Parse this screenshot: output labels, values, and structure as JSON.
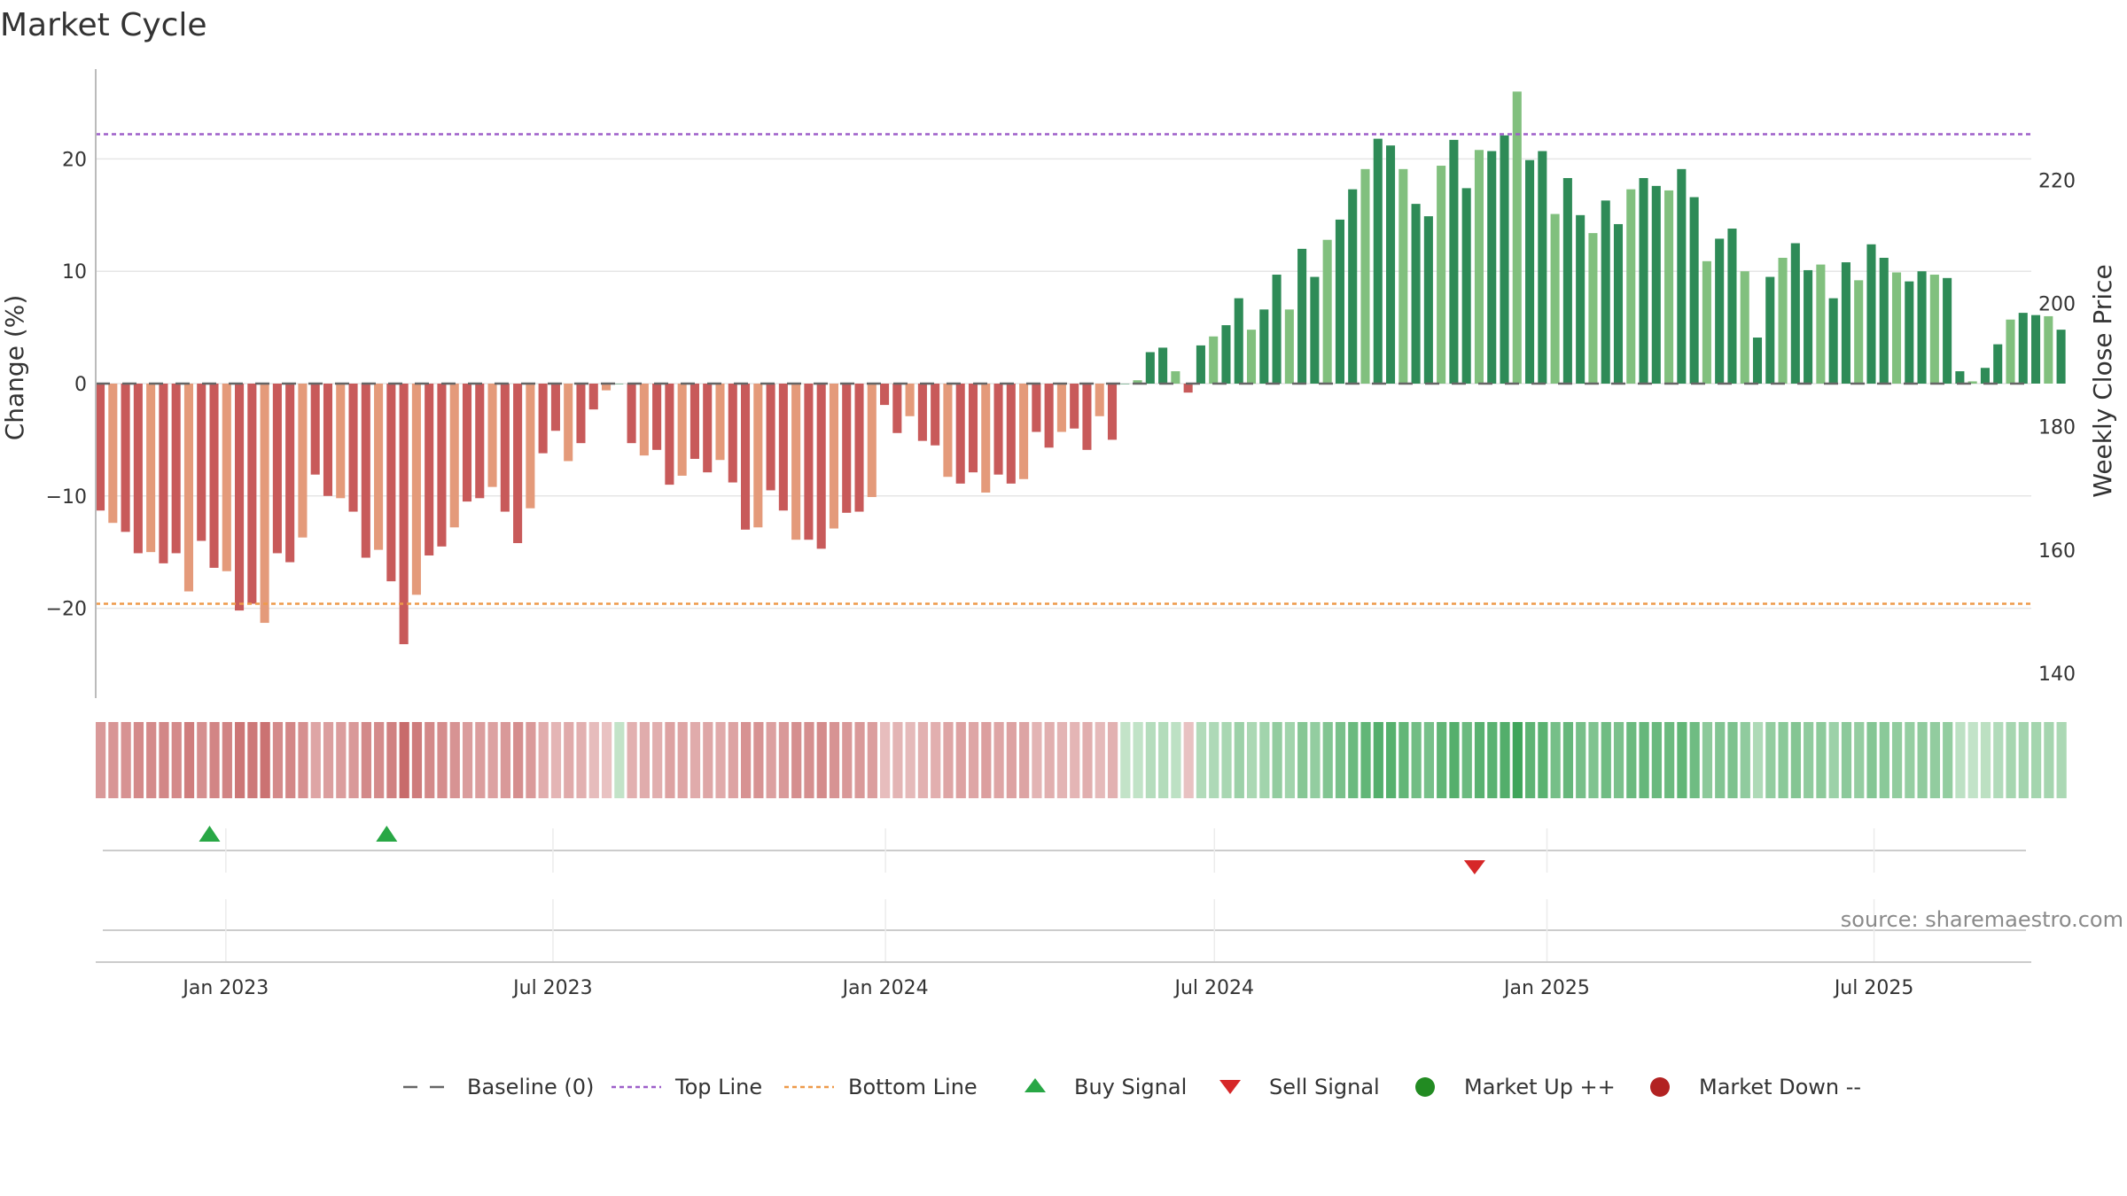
{
  "chart_data": {
    "type": "bar",
    "title": "Market Cycle",
    "ylabel": "Change (%)",
    "y2label": "Weekly Close Price",
    "ylim": [
      -28,
      28
    ],
    "y2lim": [
      136,
      238
    ],
    "yticks": [
      -20,
      -10,
      0,
      10,
      20
    ],
    "y2ticks": [
      140,
      160,
      180,
      200,
      220
    ],
    "xlim": [
      "2022-10-21",
      "2025-09-26"
    ],
    "xticks": [
      {
        "date": "2023-01-01",
        "label": "Jan 2023"
      },
      {
        "date": "2023-07-01",
        "label": "Jul 2023"
      },
      {
        "date": "2024-01-01",
        "label": "Jan 2024"
      },
      {
        "date": "2024-07-01",
        "label": "Jul 2024"
      },
      {
        "date": "2025-01-01",
        "label": "Jan 2025"
      },
      {
        "date": "2025-07-01",
        "label": "Jul 2025"
      }
    ],
    "start_date": "2022-10-21",
    "interval_days": 7,
    "top_line": 22.2,
    "bottom_line": -19.6,
    "baseline": 0,
    "values": [
      -11.3,
      -12.4,
      -13.2,
      -15.1,
      -15.0,
      -16.0,
      -15.1,
      -18.5,
      -14.0,
      -16.4,
      -16.7,
      -20.2,
      -19.6,
      -21.3,
      -15.1,
      -15.9,
      -13.7,
      -8.1,
      -10.0,
      -10.2,
      -11.4,
      -15.5,
      -14.8,
      -17.6,
      -23.2,
      -18.8,
      -15.3,
      -14.5,
      -12.8,
      -10.5,
      -10.2,
      -9.2,
      -11.4,
      -14.2,
      -11.1,
      -6.2,
      -4.2,
      -6.9,
      -5.3,
      -2.3,
      -0.6,
      0,
      -5.3,
      -6.4,
      -5.9,
      -9.0,
      -8.2,
      -6.7,
      -7.9,
      -6.8,
      -8.8,
      -13.0,
      -12.8,
      -9.5,
      -11.3,
      -13.9,
      -13.9,
      -14.7,
      -12.9,
      -11.5,
      -11.4,
      -10.1,
      -1.9,
      -4.4,
      -2.9,
      -5.1,
      -5.5,
      -8.3,
      -8.9,
      -7.9,
      -9.7,
      -8.1,
      -8.9,
      -8.5,
      -4.3,
      -5.7,
      -4.3,
      -4.0,
      -5.9,
      -2.9,
      -5.0,
      0,
      0.3,
      2.8,
      3.2,
      1.1,
      -0.8,
      3.4,
      4.2,
      5.2,
      7.6,
      4.8,
      6.6,
      9.7,
      6.6,
      12.0,
      9.5,
      12.8,
      14.6,
      17.3,
      19.1,
      21.8,
      21.2,
      19.1,
      16.0,
      14.9,
      19.4,
      21.7,
      17.4,
      20.8,
      20.7,
      22.1,
      26.0,
      19.9,
      20.7,
      15.1,
      18.3,
      15.0,
      13.4,
      16.3,
      14.2,
      17.3,
      18.3,
      17.6,
      17.2,
      19.1,
      16.6,
      10.9,
      12.9,
      13.8,
      10.0,
      4.1,
      9.5,
      11.2,
      12.5,
      10.1,
      10.6,
      7.6,
      10.8,
      9.2,
      12.4,
      11.2,
      9.9,
      9.1,
      10.0,
      9.7,
      9.4,
      1.1,
      0.2,
      1.4,
      3.5,
      5.7,
      6.3,
      6.1,
      6.0,
      4.8
    ],
    "buy_signals": [
      "2022-12-23",
      "2023-03-31"
    ],
    "sell_signals": [
      "2024-11-22"
    ],
    "colors": {
      "neg_dark": "#c85a5a",
      "neg_light": "#e49a7a",
      "pos_dark": "#2e8b57",
      "pos_light": "#81c07e",
      "top_line": "#9d5fc9",
      "bottom_line": "#ee9a4a",
      "baseline": "#666666",
      "buy": "#28a745",
      "sell": "#d62728",
      "market_up": "#228b22",
      "market_down": "#b22222"
    }
  },
  "source": "source: sharemaestro.com",
  "legend": [
    {
      "key": "baseline",
      "label": "Baseline (0)",
      "icon": "dashed-line-icon"
    },
    {
      "key": "top",
      "label": "Top Line",
      "icon": "dotted-line-icon"
    },
    {
      "key": "bottom",
      "label": "Bottom Line",
      "icon": "dotted-line-icon"
    },
    {
      "key": "buy",
      "label": "Buy Signal",
      "icon": "up-triangle-icon"
    },
    {
      "key": "sell",
      "label": "Sell Signal",
      "icon": "down-triangle-icon"
    },
    {
      "key": "up",
      "label": "Market Up ++",
      "icon": "circle-icon"
    },
    {
      "key": "down",
      "label": "Market Down --",
      "icon": "circle-icon"
    }
  ]
}
